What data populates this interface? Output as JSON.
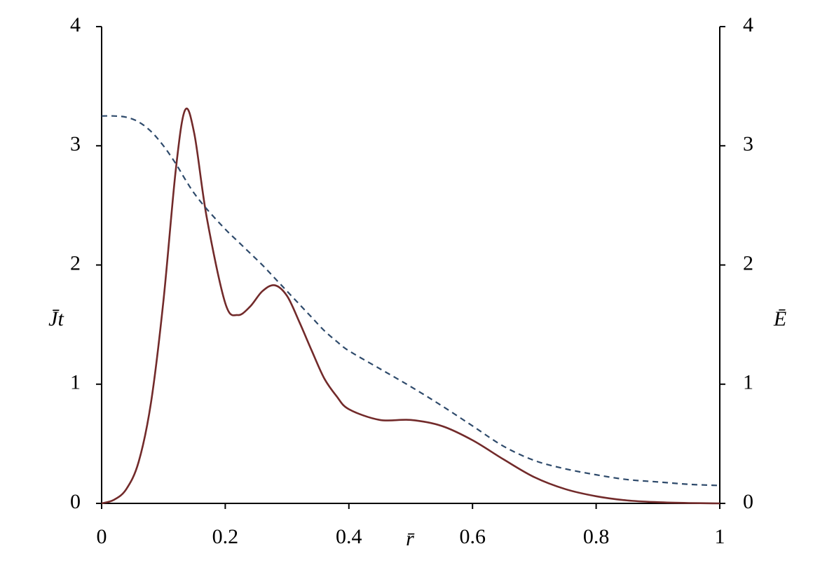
{
  "chart_data": {
    "type": "line",
    "xlabel": "r̄",
    "ylabel": "J̄t",
    "y2label": "Ē",
    "x": [
      0,
      0.02,
      0.04,
      0.06,
      0.08,
      0.1,
      0.12,
      0.135,
      0.15,
      0.17,
      0.2,
      0.22,
      0.24,
      0.26,
      0.28,
      0.3,
      0.32,
      0.34,
      0.36,
      0.38,
      0.4,
      0.45,
      0.5,
      0.55,
      0.6,
      0.65,
      0.7,
      0.75,
      0.8,
      0.85,
      0.9,
      0.95,
      1
    ],
    "series": [
      {
        "color": "#722a2a",
        "dash": false,
        "values": [
          0,
          0.03,
          0.12,
          0.35,
          0.85,
          1.7,
          2.8,
          3.3,
          3.1,
          2.4,
          1.68,
          1.58,
          1.65,
          1.78,
          1.83,
          1.74,
          1.52,
          1.28,
          1.05,
          0.9,
          0.79,
          0.7,
          0.7,
          0.65,
          0.53,
          0.37,
          0.22,
          0.12,
          0.06,
          0.025,
          0.01,
          0.003,
          0
        ]
      },
      {
        "color": "#2e4a6b",
        "dash": true,
        "axis": "y2",
        "values": [
          3.25,
          3.25,
          3.24,
          3.2,
          3.12,
          3.0,
          2.85,
          2.72,
          2.6,
          2.47,
          2.3,
          2.2,
          2.1,
          2.0,
          1.89,
          1.78,
          1.67,
          1.56,
          1.45,
          1.36,
          1.28,
          1.13,
          0.98,
          0.82,
          0.65,
          0.48,
          0.36,
          0.29,
          0.24,
          0.2,
          0.18,
          0.16,
          0.15
        ]
      }
    ],
    "xlim": [
      0,
      1
    ],
    "xticks": [
      0,
      0.2,
      0.4,
      0.6,
      0.8,
      1
    ],
    "ylim": [
      0,
      4
    ],
    "yticks": [
      0,
      1,
      2,
      3,
      4
    ],
    "y2lim": [
      0,
      4
    ],
    "y2ticks": [
      0,
      1,
      2,
      3,
      4
    ]
  }
}
